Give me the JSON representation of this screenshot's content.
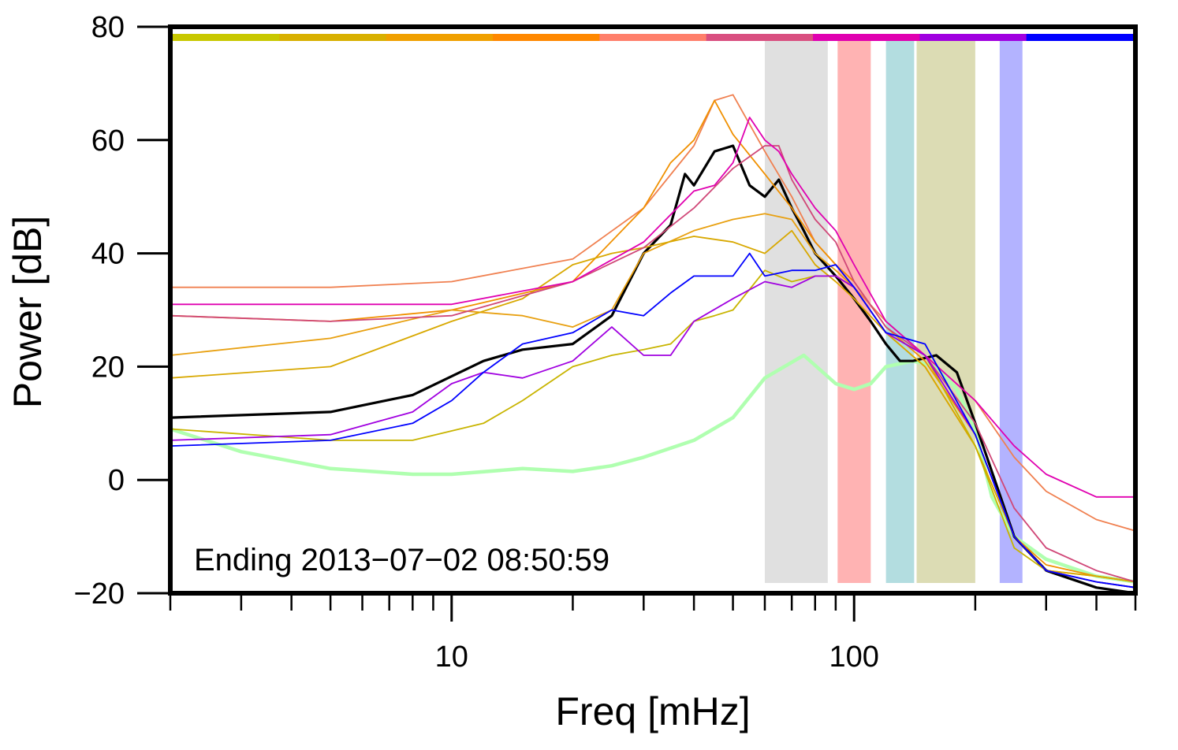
{
  "chart_data": {
    "type": "line",
    "title": "",
    "xlabel": "Freq [mHz]",
    "ylabel": "Power [dB]",
    "x_scale": "log",
    "xlim": [
      2,
      500
    ],
    "ylim": [
      -20,
      80
    ],
    "x_tick_labels": [
      "10",
      "100"
    ],
    "y_tick_labels": [
      "80",
      "60",
      "40",
      "20",
      "0",
      "−20"
    ],
    "annotation": "Ending 2013−07−02 08:50:59",
    "grid": false,
    "color_bar_top": [
      "#c8c800",
      "#d8b000",
      "#f0a000",
      "#ff8800",
      "#ff7f6b",
      "#d94f80",
      "#e000b0",
      "#a000e0",
      "#0000ff"
    ],
    "bands": [
      {
        "from": 60,
        "to": 86,
        "color": "#e0e0e0"
      },
      {
        "from": 91,
        "to": 110,
        "color": "#ffb3b3"
      },
      {
        "from": 120,
        "to": 141,
        "color": "#b3dde0"
      },
      {
        "from": 143,
        "to": 200,
        "color": "#dcdcb4"
      },
      {
        "from": 230,
        "to": 262,
        "color": "#b3b3ff"
      }
    ],
    "series": [
      {
        "color": "#b0ffb0",
        "x": [
          2,
          3,
          5,
          8,
          10,
          15,
          20,
          25,
          30,
          40,
          50,
          60,
          75,
          90,
          100,
          110,
          120,
          140,
          160,
          180,
          200,
          220,
          250,
          300,
          400,
          500
        ],
        "y": [
          9,
          5,
          2,
          1,
          1,
          2,
          1.5,
          2.5,
          4,
          7,
          11,
          18,
          22,
          17,
          16,
          17,
          20,
          21,
          20,
          16,
          9,
          -3,
          -10,
          -14,
          -17,
          -18
        ]
      },
      {
        "color": "#000000",
        "x": [
          2,
          5,
          8,
          12,
          15,
          20,
          25,
          30,
          35,
          38,
          40,
          45,
          50,
          55,
          60,
          65,
          70,
          75,
          80,
          90,
          100,
          110,
          120,
          130,
          140,
          160,
          180,
          200,
          250,
          300,
          400,
          500
        ],
        "y": [
          11,
          12,
          15,
          21,
          23,
          24,
          29,
          40,
          45,
          54,
          52,
          58,
          59,
          52,
          50,
          53,
          48,
          44,
          40,
          36,
          32,
          28,
          24,
          21,
          21,
          22,
          19,
          10,
          -10,
          -16,
          -19,
          -20
        ]
      },
      {
        "color": "#f08050",
        "x": [
          2,
          5,
          10,
          20,
          30,
          40,
          45,
          50,
          60,
          70,
          80,
          90,
          100,
          120,
          150,
          200,
          250,
          300,
          400,
          500
        ],
        "y": [
          34,
          34,
          35,
          39,
          48,
          59,
          67,
          68,
          58,
          50,
          42,
          38,
          34,
          28,
          22,
          14,
          4,
          -2,
          -7,
          -9
        ]
      },
      {
        "color": "#f09000",
        "x": [
          2,
          5,
          10,
          20,
          30,
          35,
          40,
          45,
          50,
          60,
          70,
          80,
          90,
          100,
          120,
          150,
          200,
          250,
          300,
          400,
          500
        ],
        "y": [
          29,
          28,
          30,
          35,
          48,
          56,
          60,
          67,
          61,
          54,
          48,
          42,
          38,
          35,
          27,
          21,
          8,
          -10,
          -15,
          -17,
          -18
        ]
      },
      {
        "color": "#e8a010",
        "x": [
          2,
          5,
          10,
          15,
          20,
          25,
          30,
          40,
          50,
          60,
          70,
          80,
          90,
          100,
          120,
          150,
          200,
          250,
          300,
          400,
          500
        ],
        "y": [
          22,
          25,
          30,
          29,
          27,
          30,
          40,
          44,
          46,
          47,
          46,
          40,
          37,
          34,
          26,
          20,
          6,
          -10,
          -16,
          -17,
          -18
        ]
      },
      {
        "color": "#d8a800",
        "x": [
          2,
          5,
          10,
          15,
          20,
          25,
          30,
          40,
          50,
          60,
          70,
          80,
          90,
          100,
          120,
          150,
          200,
          250,
          300,
          400,
          500
        ],
        "y": [
          18,
          20,
          28,
          32,
          38,
          40,
          41,
          43,
          42,
          40,
          44,
          38,
          35,
          32,
          26,
          20,
          6,
          -10,
          -16,
          -17,
          -18
        ]
      },
      {
        "color": "#c8b400",
        "x": [
          2,
          5,
          8,
          12,
          15,
          20,
          25,
          30,
          35,
          40,
          45,
          50,
          60,
          70,
          80,
          90,
          100,
          120,
          150,
          200,
          250,
          300,
          400,
          500
        ],
        "y": [
          9,
          7,
          7,
          10,
          14,
          20,
          22,
          23,
          24,
          28,
          29,
          30,
          37,
          35,
          36,
          36,
          34,
          26,
          22,
          6,
          -12,
          -16,
          -18,
          -19
        ]
      },
      {
        "color": "#d04878",
        "x": [
          2,
          5,
          10,
          20,
          30,
          40,
          50,
          60,
          65,
          70,
          80,
          90,
          100,
          120,
          150,
          200,
          250,
          300,
          400,
          500
        ],
        "y": [
          29,
          28,
          29,
          35,
          41,
          48,
          55,
          59,
          59,
          53,
          46,
          42,
          35,
          27,
          22,
          10,
          -5,
          -12,
          -16,
          -18
        ]
      },
      {
        "color": "#e000b0",
        "x": [
          2,
          5,
          10,
          20,
          30,
          40,
          45,
          50,
          55,
          60,
          65,
          70,
          80,
          90,
          100,
          120,
          150,
          200,
          250,
          300,
          400,
          500
        ],
        "y": [
          31,
          31,
          31,
          35,
          42,
          51,
          52,
          56,
          64,
          60,
          58,
          54,
          48,
          44,
          38,
          28,
          22,
          14,
          6,
          1,
          -3,
          -3
        ]
      },
      {
        "color": "#a000e0",
        "x": [
          2,
          5,
          8,
          10,
          12,
          15,
          20,
          25,
          30,
          35,
          40,
          50,
          60,
          70,
          80,
          90,
          100,
          120,
          150,
          200,
          250,
          300,
          400,
          500
        ],
        "y": [
          7,
          8,
          12,
          17,
          19,
          18,
          21,
          27,
          22,
          22,
          28,
          32,
          35,
          34,
          36,
          36,
          34,
          26,
          22,
          8,
          -10,
          -16,
          -18,
          -19
        ]
      },
      {
        "color": "#0000ff",
        "x": [
          2,
          5,
          8,
          10,
          12,
          15,
          20,
          25,
          30,
          35,
          40,
          50,
          55,
          60,
          70,
          80,
          90,
          100,
          120,
          150,
          200,
          250,
          300,
          400,
          500
        ],
        "y": [
          6,
          7,
          10,
          14,
          19,
          24,
          26,
          30,
          29,
          33,
          36,
          36,
          40,
          36,
          37,
          37,
          38,
          34,
          26,
          24,
          8,
          -10,
          -16,
          -18,
          -19
        ]
      }
    ]
  }
}
